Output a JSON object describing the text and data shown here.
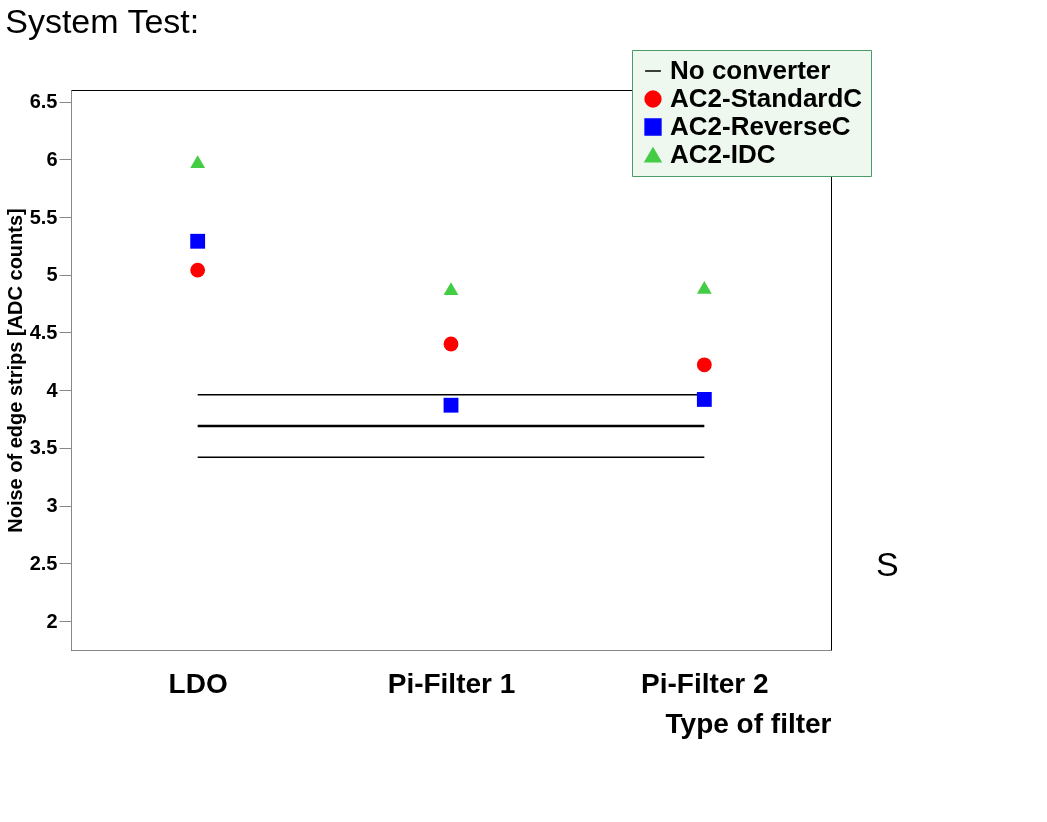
{
  "chart_data": {
    "type": "scatter",
    "title": "System Test:",
    "xlabel": "Type of filter",
    "ylabel": "Noise of edge strips [ADC counts]",
    "categories": [
      "LDO",
      "Pi-Filter 1",
      "Pi-Filter 2"
    ],
    "series": [
      {
        "name": "No converter",
        "type": "line",
        "color": "#000000",
        "values": [
          3.69,
          3.69,
          3.69
        ]
      },
      {
        "type": "line",
        "color": "#000000",
        "values": [
          3.96,
          3.96,
          3.96
        ]
      },
      {
        "type": "line",
        "color": "#000000",
        "values": [
          3.42,
          3.42,
          3.42
        ]
      },
      {
        "name": "AC2-StandardC",
        "color": "#ff0000",
        "marker": "circle",
        "values": [
          5.04,
          4.4,
          4.22
        ]
      },
      {
        "name": "AC2-ReverseC",
        "color": "#0000ff",
        "marker": "square",
        "values": [
          5.29,
          3.87,
          3.92
        ]
      },
      {
        "name": "AC2-IDC",
        "color": "#44cc44",
        "marker": "triangle",
        "values": [
          5.98,
          4.88,
          4.89
        ]
      }
    ],
    "ylim": [
      1.75,
      6.6
    ],
    "yticks": [
      2,
      2.5,
      3,
      3.5,
      4,
      4.5,
      5,
      5.5,
      6,
      6.5
    ],
    "grid": false,
    "legend": "top right",
    "annotations": [
      "S"
    ]
  }
}
